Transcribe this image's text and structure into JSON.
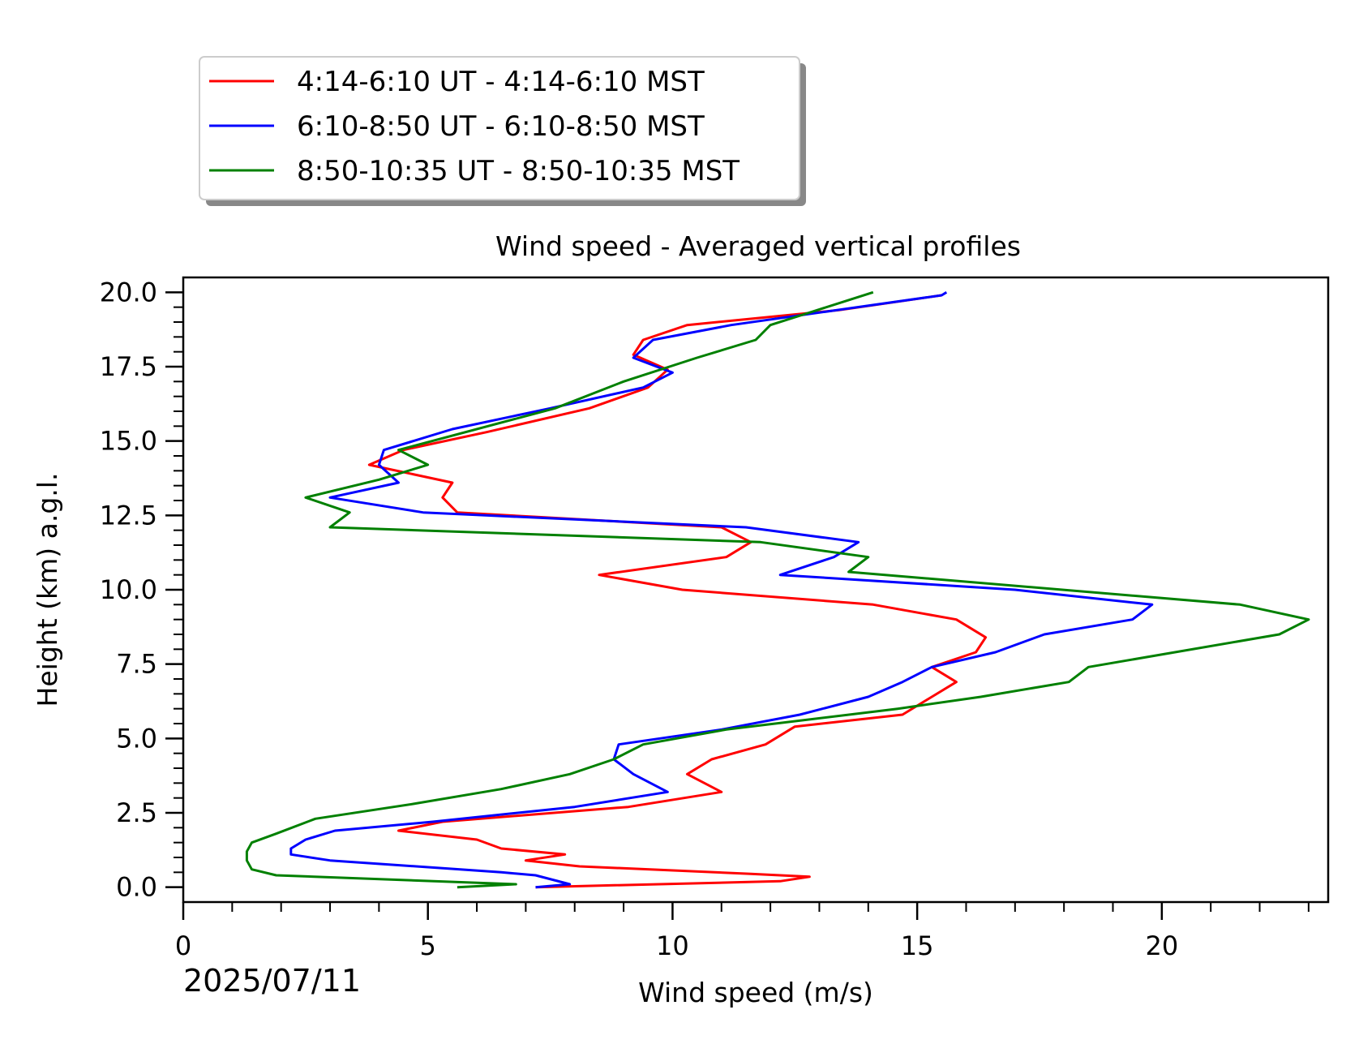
{
  "chart_data": {
    "type": "line",
    "title": "Wind speed - Averaged vertical profiles",
    "xlabel": "Wind speed (m/s)",
    "ylabel": "Height (km) a.g.l.",
    "date_label": "2025/07/11",
    "xlim": [
      0,
      23.4
    ],
    "ylim": [
      -0.5,
      20.5
    ],
    "x_ticks": [
      "0",
      "5",
      "10",
      "15",
      "20"
    ],
    "y_ticks": [
      "0.0",
      "2.5",
      "5.0",
      "7.5",
      "10.0",
      "12.5",
      "15.0",
      "17.5",
      "20.0"
    ],
    "grid": false,
    "legend_position": "top-left, above plot",
    "series": [
      {
        "name": "4:14-6:10 UT - 4:14-6:10 MST",
        "color": "#ff0000",
        "points": [
          [
            7.2,
            0.0
          ],
          [
            12.2,
            0.2
          ],
          [
            12.8,
            0.35
          ],
          [
            11.6,
            0.45
          ],
          [
            8.1,
            0.7
          ],
          [
            7.0,
            0.9
          ],
          [
            7.8,
            1.1
          ],
          [
            6.5,
            1.3
          ],
          [
            6.0,
            1.6
          ],
          [
            4.4,
            1.9
          ],
          [
            5.3,
            2.2
          ],
          [
            9.1,
            2.7
          ],
          [
            11.0,
            3.2
          ],
          [
            10.3,
            3.8
          ],
          [
            10.8,
            4.3
          ],
          [
            11.9,
            4.8
          ],
          [
            12.5,
            5.4
          ],
          [
            14.7,
            5.8
          ],
          [
            15.3,
            6.4
          ],
          [
            15.8,
            6.9
          ],
          [
            15.3,
            7.4
          ],
          [
            16.2,
            7.9
          ],
          [
            16.4,
            8.4
          ],
          [
            15.8,
            9.0
          ],
          [
            14.1,
            9.5
          ],
          [
            10.2,
            10.0
          ],
          [
            8.5,
            10.5
          ],
          [
            11.1,
            11.1
          ],
          [
            11.6,
            11.6
          ],
          [
            11.0,
            12.1
          ],
          [
            5.6,
            12.6
          ],
          [
            5.3,
            13.1
          ],
          [
            5.5,
            13.6
          ],
          [
            3.8,
            14.2
          ],
          [
            4.5,
            14.7
          ],
          [
            6.2,
            15.3
          ],
          [
            8.3,
            16.1
          ],
          [
            9.5,
            16.8
          ],
          [
            9.9,
            17.4
          ],
          [
            9.2,
            17.9
          ],
          [
            9.4,
            18.4
          ],
          [
            10.3,
            18.9
          ],
          [
            13.4,
            19.4
          ],
          [
            15.5,
            19.9
          ]
        ]
      },
      {
        "name": "6:10-8:50 UT - 6:10-8:50 MST",
        "color": "#0000ff",
        "points": [
          [
            7.2,
            0.0
          ],
          [
            7.9,
            0.1
          ],
          [
            7.2,
            0.4
          ],
          [
            6.5,
            0.5
          ],
          [
            3.0,
            0.9
          ],
          [
            2.2,
            1.1
          ],
          [
            2.2,
            1.3
          ],
          [
            2.5,
            1.6
          ],
          [
            3.1,
            1.9
          ],
          [
            5.1,
            2.2
          ],
          [
            8.0,
            2.7
          ],
          [
            9.9,
            3.2
          ],
          [
            9.2,
            3.8
          ],
          [
            8.8,
            4.3
          ],
          [
            8.9,
            4.8
          ],
          [
            11.0,
            5.3
          ],
          [
            12.6,
            5.8
          ],
          [
            14.0,
            6.4
          ],
          [
            14.7,
            6.9
          ],
          [
            15.3,
            7.4
          ],
          [
            16.6,
            7.9
          ],
          [
            17.6,
            8.5
          ],
          [
            19.4,
            9.0
          ],
          [
            19.8,
            9.5
          ],
          [
            17.0,
            10.0
          ],
          [
            12.2,
            10.5
          ],
          [
            13.3,
            11.1
          ],
          [
            13.8,
            11.6
          ],
          [
            11.5,
            12.1
          ],
          [
            4.9,
            12.6
          ],
          [
            3.0,
            13.1
          ],
          [
            4.4,
            13.6
          ],
          [
            4.0,
            14.2
          ],
          [
            4.1,
            14.7
          ],
          [
            5.5,
            15.4
          ],
          [
            7.5,
            16.1
          ],
          [
            9.4,
            16.8
          ],
          [
            10.0,
            17.3
          ],
          [
            9.2,
            17.8
          ],
          [
            9.6,
            18.4
          ],
          [
            11.2,
            18.9
          ],
          [
            15.5,
            19.9
          ],
          [
            15.6,
            20.0
          ]
        ]
      },
      {
        "name": "8:50-10:35 UT - 8:50-10:35 MST",
        "color": "#008000",
        "points": [
          [
            5.6,
            0.0
          ],
          [
            6.8,
            0.1
          ],
          [
            1.9,
            0.4
          ],
          [
            1.4,
            0.6
          ],
          [
            1.3,
            0.9
          ],
          [
            1.3,
            1.2
          ],
          [
            1.4,
            1.5
          ],
          [
            1.9,
            1.8
          ],
          [
            2.7,
            2.3
          ],
          [
            4.7,
            2.8
          ],
          [
            6.5,
            3.3
          ],
          [
            7.9,
            3.8
          ],
          [
            8.8,
            4.3
          ],
          [
            9.4,
            4.8
          ],
          [
            11.1,
            5.3
          ],
          [
            14.6,
            6.0
          ],
          [
            16.3,
            6.4
          ],
          [
            18.1,
            6.9
          ],
          [
            18.5,
            7.4
          ],
          [
            22.4,
            8.5
          ],
          [
            23.0,
            9.0
          ],
          [
            21.6,
            9.5
          ],
          [
            13.6,
            10.6
          ],
          [
            14.0,
            11.1
          ],
          [
            11.8,
            11.6
          ],
          [
            3.0,
            12.1
          ],
          [
            3.4,
            12.6
          ],
          [
            2.5,
            13.1
          ],
          [
            4.0,
            13.7
          ],
          [
            5.0,
            14.2
          ],
          [
            4.4,
            14.7
          ],
          [
            7.6,
            16.1
          ],
          [
            9.0,
            17.0
          ],
          [
            10.5,
            17.8
          ],
          [
            11.7,
            18.4
          ],
          [
            12.0,
            18.9
          ],
          [
            14.1,
            20.0
          ]
        ]
      }
    ]
  }
}
